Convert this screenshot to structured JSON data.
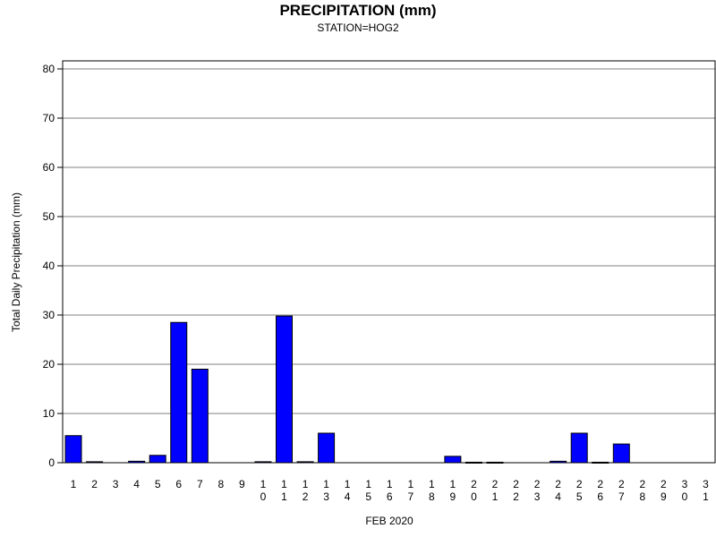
{
  "chart_data": {
    "type": "bar",
    "title": "PRECIPITATION (mm)",
    "subtitle": "STATION=HOG2",
    "xlabel": "FEB 2020",
    "ylabel": "Total Daily Precipitation (mm)",
    "ylim": [
      0,
      80
    ],
    "yticks": [
      0,
      10,
      20,
      30,
      40,
      50,
      60,
      70,
      80
    ],
    "grid": true,
    "bar_color": "#0000ff",
    "categories": [
      "1",
      "2",
      "3",
      "4",
      "5",
      "6",
      "7",
      "8",
      "9",
      "10",
      "11",
      "12",
      "13",
      "14",
      "15",
      "16",
      "17",
      "18",
      "19",
      "20",
      "21",
      "22",
      "23",
      "24",
      "25",
      "26",
      "27",
      "28",
      "29",
      "30",
      "31"
    ],
    "values": [
      5.5,
      0.2,
      null,
      0.3,
      1.5,
      28.5,
      19.0,
      null,
      null,
      0.2,
      29.8,
      0.2,
      6.0,
      null,
      null,
      null,
      null,
      null,
      1.3,
      0.1,
      0.1,
      null,
      null,
      0.3,
      6.0,
      0.1,
      3.8,
      null,
      null,
      null,
      null
    ]
  }
}
